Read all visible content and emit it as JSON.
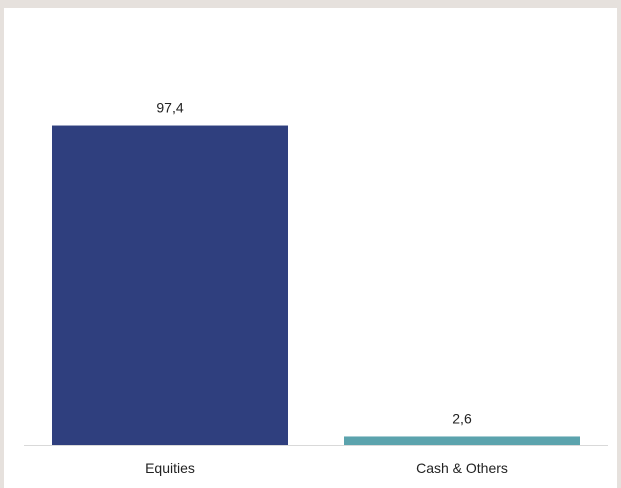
{
  "chart_data": {
    "type": "bar",
    "categories": [
      "Equities",
      "Cash & Others"
    ],
    "values": [
      97.4,
      2.6
    ],
    "value_labels": [
      "97,4",
      "2,6"
    ],
    "colors": [
      "#2f3f7e",
      "#5ba3ad"
    ],
    "title": "",
    "xlabel": "",
    "ylabel": "",
    "ylim": [
      0,
      100
    ],
    "grid": false,
    "legend": "none"
  }
}
